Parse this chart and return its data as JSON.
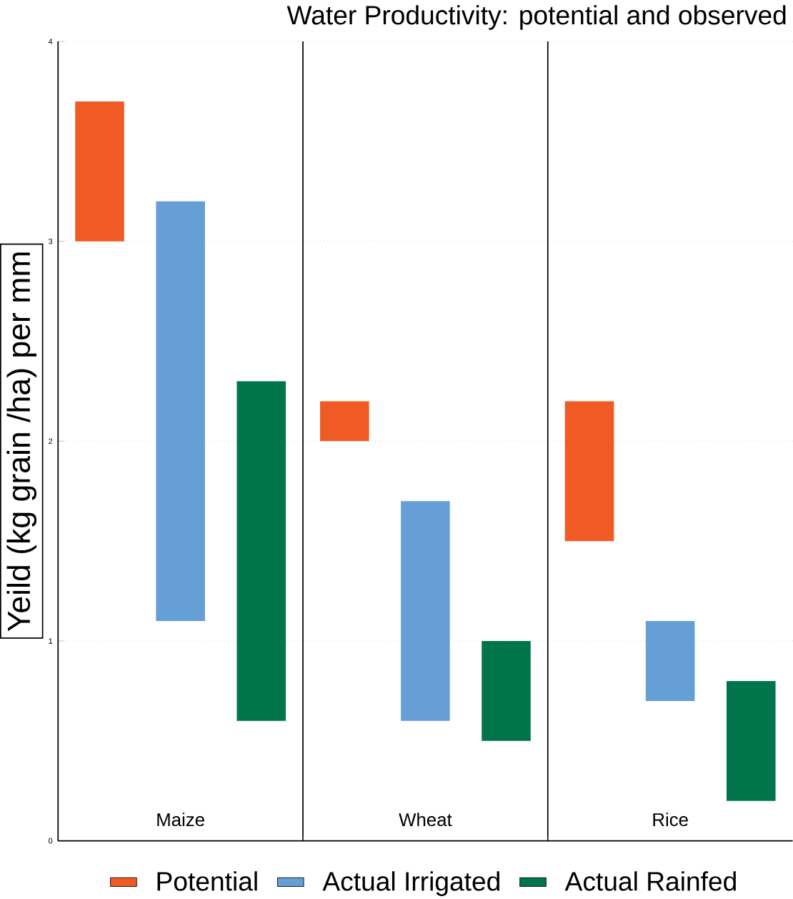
{
  "chart_data": {
    "type": "bar",
    "title": "Water Productivity: potential and observed",
    "ylabel": "Yeild (kg grain /ha) per mm",
    "categories": [
      "Maize",
      "Wheat",
      "Rice"
    ],
    "series": [
      {
        "name": "Potential",
        "color": "#f05a24",
        "values": [
          0.7,
          0.2,
          0.7
        ],
        "base": [
          3.0,
          2.0,
          1.5
        ]
      },
      {
        "name": "Actual Irrigated",
        "color": "#659fd6",
        "values": [
          2.1,
          1.1,
          0.4
        ],
        "base": [
          1.1,
          0.6,
          0.7
        ]
      },
      {
        "name": "Actual Rainfed",
        "color": "#00744a",
        "values": [
          1.7,
          0.5,
          0.6
        ],
        "base": [
          0.6,
          0.5,
          0.2
        ]
      }
    ],
    "ylim": [
      0,
      4
    ],
    "yticks": [
      0,
      1,
      2,
      3,
      4
    ],
    "grid": "y",
    "legend": "bottom"
  }
}
